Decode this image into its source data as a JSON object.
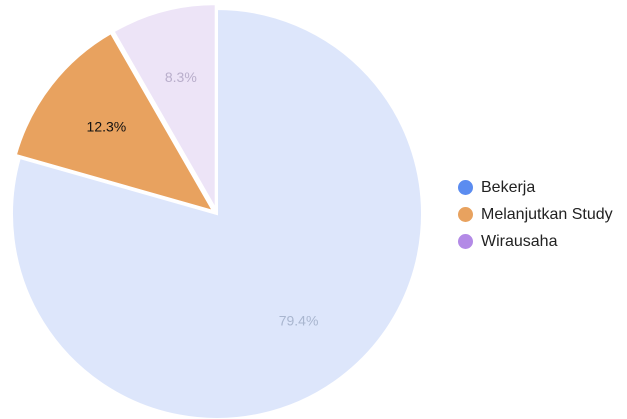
{
  "chart_data": {
    "type": "pie",
    "title": "",
    "start_angle_deg": 90,
    "direction": "clockwise",
    "legend_position": "right",
    "slices": [
      {
        "label": "Bekerja",
        "value": 79.4,
        "display": "79.4%",
        "fill": "#dde6fb",
        "legend_color": "#5b8cf0",
        "label_color": "#a9b6cf",
        "exploded": false
      },
      {
        "label": "Melanjutkan Study",
        "value": 12.3,
        "display": "12.3%",
        "fill": "#e8a25f",
        "legend_color": "#e8a25f",
        "label_color": "#111111",
        "exploded": true
      },
      {
        "label": "Wirausaha",
        "value": 8.3,
        "display": "8.3%",
        "fill": "#ede4f7",
        "legend_color": "#b38ae6",
        "label_color": "#b9aecb",
        "exploded": true
      }
    ]
  }
}
